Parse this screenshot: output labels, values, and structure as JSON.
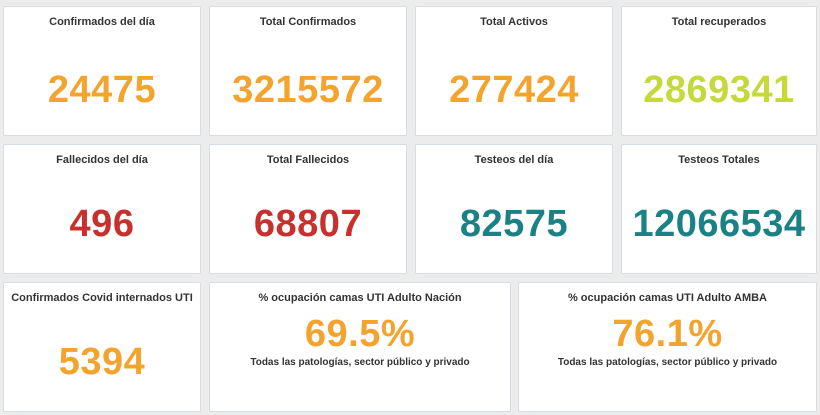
{
  "cards": {
    "confirmados_dia": {
      "title": "Confirmados del día",
      "value": "24475"
    },
    "total_confirmados": {
      "title": "Total Confirmados",
      "value": "3215572"
    },
    "total_activos": {
      "title": "Total Activos",
      "value": "277424"
    },
    "total_recuperados": {
      "title": "Total recuperados",
      "value": "2869341"
    },
    "fallecidos_dia": {
      "title": "Fallecidos del día",
      "value": "496"
    },
    "total_fallecidos": {
      "title": "Total Fallecidos",
      "value": "68807"
    },
    "testeos_dia": {
      "title": "Testeos del día",
      "value": "82575"
    },
    "testeos_totales": {
      "title": "Testeos Totales",
      "value": "12066534"
    },
    "internados_uti": {
      "title": "Confirmados Covid internados UTI",
      "value": "5394"
    },
    "ocupacion_nacion": {
      "title": "% ocupación camas UTI Adulto Nación",
      "value": "69.5%",
      "subtitle": "Todas las patologías, sector público y privado"
    },
    "ocupacion_amba": {
      "title": "% ocupación camas UTI Adulto AMBA",
      "value": "76.1%",
      "subtitle": "Todas las patologías, sector público y privado"
    }
  },
  "colors": {
    "orange": "#f3a42f",
    "lime": "#c6d93a",
    "red": "#c8302e",
    "teal": "#1a8284"
  }
}
